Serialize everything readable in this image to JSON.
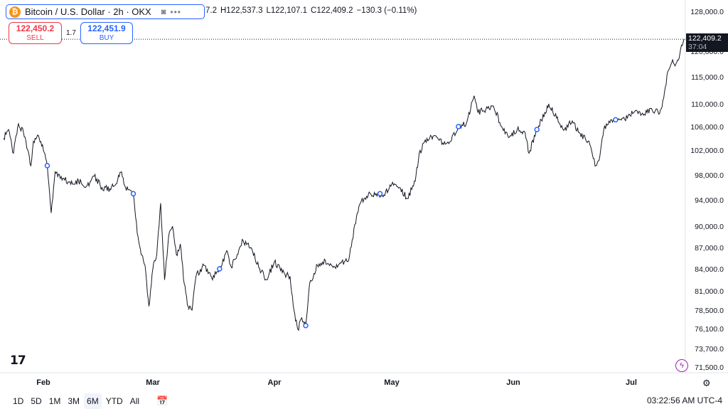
{
  "symbol": {
    "title": "Bitcoin / U.S. Dollar · 2h · OKX",
    "logo_glyph": "₿",
    "logo_color": "#f7931a",
    "eye_icon": "eye-slash-icon",
    "more_icon": "more-icon"
  },
  "ohlc": {
    "open_tail": "7.2",
    "high": "H122,537.3",
    "low": "L122,107.1",
    "close": "C122,409.2",
    "change": "−130.3 (−0.11%)"
  },
  "trade": {
    "sell_price": "122,450.2",
    "sell_label": "SELL",
    "spread": "1.7",
    "buy_price": "122,451.9",
    "buy_label": "BUY",
    "sell_color": "#f23645",
    "buy_color": "#2962ff"
  },
  "last_price": {
    "value": "122,409.2",
    "countdown": "37:04"
  },
  "logo_text": "17",
  "bottom": {
    "periods": [
      "1D",
      "5D",
      "1M",
      "3M",
      "6M",
      "YTD",
      "All"
    ],
    "active_period": "6M",
    "clock": "03:22:56 AM UTC-4"
  },
  "chart_data": {
    "type": "line",
    "ylim": [
      70000,
      130000
    ],
    "y_ticks": [
      {
        "v": 128000,
        "label": "128,000.0"
      },
      {
        "v": 120000,
        "label": "120,000.0"
      },
      {
        "v": 115000,
        "label": "115,000.0"
      },
      {
        "v": 110000,
        "label": "110,000.0"
      },
      {
        "v": 106000,
        "label": "106,000.0"
      },
      {
        "v": 102000,
        "label": "102,000.0"
      },
      {
        "v": 98000,
        "label": "98,000.0"
      },
      {
        "v": 94000,
        "label": "94,000.0"
      },
      {
        "v": 90000,
        "label": "90,000.0"
      },
      {
        "v": 87000,
        "label": "87,000.0"
      },
      {
        "v": 84000,
        "label": "84,000.0"
      },
      {
        "v": 81000,
        "label": "81,000.0"
      },
      {
        "v": 78500,
        "label": "78,500.0"
      },
      {
        "v": 76100,
        "label": "76,100.0"
      },
      {
        "v": 73700,
        "label": "73,700.0"
      },
      {
        "v": 71500,
        "label": "71,500.0"
      }
    ],
    "x_ticks": [
      {
        "date": "2025-02-01",
        "label": "Feb"
      },
      {
        "date": "2025-03-01",
        "label": "Mar"
      },
      {
        "date": "2025-04-01",
        "label": "Apr"
      },
      {
        "date": "2025-05-01",
        "label": "May"
      },
      {
        "date": "2025-06-01",
        "label": "Jun"
      },
      {
        "date": "2025-07-01",
        "label": "Jul"
      }
    ],
    "x_range": [
      "2025-01-16",
      "2025-07-14"
    ],
    "series": [
      {
        "color": "#131722",
        "points": [
          [
            "2025-01-16",
            104000
          ],
          [
            "2025-01-18",
            105500
          ],
          [
            "2025-01-20",
            101500
          ],
          [
            "2025-01-22",
            106500
          ],
          [
            "2025-01-24",
            105000
          ],
          [
            "2025-01-25",
            103500
          ],
          [
            "2025-01-27",
            99500
          ],
          [
            "2025-01-28",
            103500
          ],
          [
            "2025-01-30",
            104500
          ],
          [
            "2025-02-01",
            102000
          ],
          [
            "2025-02-02",
            99500
          ],
          [
            "2025-02-03",
            92000
          ],
          [
            "2025-02-04",
            98500
          ],
          [
            "2025-02-06",
            97500
          ],
          [
            "2025-02-08",
            96500
          ],
          [
            "2025-02-10",
            97000
          ],
          [
            "2025-02-12",
            96200
          ],
          [
            "2025-02-14",
            97800
          ],
          [
            "2025-02-16",
            96000
          ],
          [
            "2025-02-18",
            95800
          ],
          [
            "2025-02-20",
            97200
          ],
          [
            "2025-02-21",
            98500
          ],
          [
            "2025-02-22",
            96000
          ],
          [
            "2025-02-24",
            95000
          ],
          [
            "2025-02-25",
            89000
          ],
          [
            "2025-02-26",
            86000
          ],
          [
            "2025-02-27",
            84500
          ],
          [
            "2025-02-28",
            79000
          ],
          [
            "2025-03-01",
            84000
          ],
          [
            "2025-03-02",
            86000
          ],
          [
            "2025-03-03",
            93500
          ],
          [
            "2025-03-04",
            82500
          ],
          [
            "2025-03-05",
            88500
          ],
          [
            "2025-03-06",
            90000
          ],
          [
            "2025-03-07",
            86000
          ],
          [
            "2025-03-08",
            87500
          ],
          [
            "2025-03-09",
            82000
          ],
          [
            "2025-03-10",
            79000
          ],
          [
            "2025-03-11",
            78500
          ],
          [
            "2025-03-12",
            83000
          ],
          [
            "2025-03-14",
            84500
          ],
          [
            "2025-03-16",
            82800
          ],
          [
            "2025-03-18",
            84000
          ],
          [
            "2025-03-20",
            86500
          ],
          [
            "2025-03-21",
            84200
          ],
          [
            "2025-03-24",
            88000
          ],
          [
            "2025-03-26",
            87000
          ],
          [
            "2025-03-28",
            84200
          ],
          [
            "2025-03-30",
            82500
          ],
          [
            "2025-04-01",
            85000
          ],
          [
            "2025-04-03",
            83500
          ],
          [
            "2025-04-05",
            83000
          ],
          [
            "2025-04-06",
            78500
          ],
          [
            "2025-04-07",
            76000
          ],
          [
            "2025-04-08",
            77500
          ],
          [
            "2025-04-09",
            76500
          ],
          [
            "2025-04-10",
            82000
          ],
          [
            "2025-04-12",
            84500
          ],
          [
            "2025-04-14",
            85200
          ],
          [
            "2025-04-16",
            84200
          ],
          [
            "2025-04-18",
            84800
          ],
          [
            "2025-04-20",
            85200
          ],
          [
            "2025-04-22",
            91500
          ],
          [
            "2025-04-23",
            93500
          ],
          [
            "2025-04-25",
            94800
          ],
          [
            "2025-04-27",
            95000
          ],
          [
            "2025-04-29",
            94800
          ],
          [
            "2025-05-01",
            96500
          ],
          [
            "2025-05-03",
            96000
          ],
          [
            "2025-05-05",
            94200
          ],
          [
            "2025-05-07",
            97000
          ],
          [
            "2025-05-08",
            101500
          ],
          [
            "2025-05-10",
            104000
          ],
          [
            "2025-05-12",
            104500
          ],
          [
            "2025-05-14",
            103200
          ],
          [
            "2025-05-16",
            103500
          ],
          [
            "2025-05-18",
            106000
          ],
          [
            "2025-05-20",
            106500
          ],
          [
            "2025-05-22",
            111500
          ],
          [
            "2025-05-23",
            108500
          ],
          [
            "2025-05-25",
            109000
          ],
          [
            "2025-05-27",
            109500
          ],
          [
            "2025-05-29",
            106000
          ],
          [
            "2025-05-31",
            104200
          ],
          [
            "2025-06-02",
            105500
          ],
          [
            "2025-06-04",
            105000
          ],
          [
            "2025-06-05",
            101500
          ],
          [
            "2025-06-07",
            105500
          ],
          [
            "2025-06-09",
            108500
          ],
          [
            "2025-06-10",
            110000
          ],
          [
            "2025-06-12",
            107500
          ],
          [
            "2025-06-14",
            105500
          ],
          [
            "2025-06-16",
            107000
          ],
          [
            "2025-06-18",
            104800
          ],
          [
            "2025-06-20",
            103500
          ],
          [
            "2025-06-22",
            99500
          ],
          [
            "2025-06-23",
            101000
          ],
          [
            "2025-06-24",
            105500
          ],
          [
            "2025-06-26",
            107200
          ],
          [
            "2025-06-28",
            107200
          ],
          [
            "2025-06-30",
            107500
          ],
          [
            "2025-07-02",
            108800
          ],
          [
            "2025-07-04",
            108000
          ],
          [
            "2025-07-06",
            109200
          ],
          [
            "2025-07-08",
            108300
          ],
          [
            "2025-07-09",
            111000
          ],
          [
            "2025-07-10",
            116000
          ],
          [
            "2025-07-11",
            117800
          ],
          [
            "2025-07-12",
            117500
          ],
          [
            "2025-07-13",
            119500
          ],
          [
            "2025-07-14",
            122409
          ]
        ]
      }
    ],
    "markers": [
      "2025-02-02",
      "2025-02-24",
      "2025-03-18",
      "2025-04-09",
      "2025-04-28",
      "2025-05-18",
      "2025-06-07",
      "2025-06-27"
    ],
    "marker_color": "#2962ff",
    "last_value": 122409.2,
    "grid": false
  }
}
